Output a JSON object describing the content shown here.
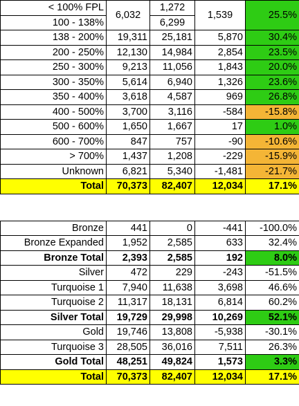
{
  "colors": {
    "total_row": "#ffff00",
    "positive": "#2ecc14",
    "negative": "#f4b536"
  },
  "fpl_table": {
    "first_group": {
      "label_a": "< 100% FPL",
      "label_b": "100 - 138%",
      "col1": "6,032",
      "col2a": "1,272",
      "col2b": "6,299",
      "col3": "1,539",
      "col4": "25.5%"
    },
    "rows": [
      {
        "label": "138 - 200%",
        "c1": "19,311",
        "c2": "25,181",
        "c3": "5,870",
        "c4": "30.4%",
        "tone": "green"
      },
      {
        "label": "200 - 250%",
        "c1": "12,130",
        "c2": "14,984",
        "c3": "2,854",
        "c4": "23.5%",
        "tone": "green"
      },
      {
        "label": "250 - 300%",
        "c1": "9,213",
        "c2": "11,056",
        "c3": "1,843",
        "c4": "20.0%",
        "tone": "green"
      },
      {
        "label": "300 - 350%",
        "c1": "5,614",
        "c2": "6,940",
        "c3": "1,326",
        "c4": "23.6%",
        "tone": "green"
      },
      {
        "label": "350 - 400%",
        "c1": "3,618",
        "c2": "4,587",
        "c3": "969",
        "c4": "26.8%",
        "tone": "green"
      },
      {
        "label": "400 - 500%",
        "c1": "3,700",
        "c2": "3,116",
        "c3": "-584",
        "c4": "-15.8%",
        "tone": "orange"
      },
      {
        "label": "500 - 600%",
        "c1": "1,650",
        "c2": "1,667",
        "c3": "17",
        "c4": "1.0%",
        "tone": "green"
      },
      {
        "label": "600 - 700%",
        "c1": "847",
        "c2": "757",
        "c3": "-90",
        "c4": "-10.6%",
        "tone": "orange"
      },
      {
        "label": "> 700%",
        "c1": "1,437",
        "c2": "1,208",
        "c3": "-229",
        "c4": "-15.9%",
        "tone": "orange"
      },
      {
        "label": "Unknown",
        "c1": "6,821",
        "c2": "5,340",
        "c3": "-1,481",
        "c4": "-21.7%",
        "tone": "orange"
      }
    ],
    "total": {
      "label": "Total",
      "c1": "70,373",
      "c2": "82,407",
      "c3": "12,034",
      "c4": "17.1%"
    }
  },
  "metal_table": {
    "rows": [
      {
        "label": "Bronze",
        "c1": "441",
        "c2": "0",
        "c3": "-441",
        "c4": "-100.0%",
        "tone": "none",
        "kind": "normal"
      },
      {
        "label": "Bronze Expanded",
        "c1": "1,952",
        "c2": "2,585",
        "c3": "633",
        "c4": "32.4%",
        "tone": "none",
        "kind": "normal"
      },
      {
        "label": "Bronze Total",
        "c1": "2,393",
        "c2": "2,585",
        "c3": "192",
        "c4": "8.0%",
        "tone": "green",
        "kind": "subtotal"
      },
      {
        "label": "Silver",
        "c1": "472",
        "c2": "229",
        "c3": "-243",
        "c4": "-51.5%",
        "tone": "none",
        "kind": "normal"
      },
      {
        "label": "Turquoise 1",
        "c1": "7,940",
        "c2": "11,638",
        "c3": "3,698",
        "c4": "46.6%",
        "tone": "none",
        "kind": "normal"
      },
      {
        "label": "Turquoise 2",
        "c1": "11,317",
        "c2": "18,131",
        "c3": "6,814",
        "c4": "60.2%",
        "tone": "none",
        "kind": "normal"
      },
      {
        "label": "Silver Total",
        "c1": "19,729",
        "c2": "29,998",
        "c3": "10,269",
        "c4": "52.1%",
        "tone": "green",
        "kind": "subtotal"
      },
      {
        "label": "Gold",
        "c1": "19,746",
        "c2": "13,808",
        "c3": "-5,938",
        "c4": "-30.1%",
        "tone": "none",
        "kind": "normal"
      },
      {
        "label": "Turquoise 3",
        "c1": "28,505",
        "c2": "36,016",
        "c3": "7,511",
        "c4": "26.3%",
        "tone": "none",
        "kind": "normal"
      },
      {
        "label": "Gold Total",
        "c1": "48,251",
        "c2": "49,824",
        "c3": "1,573",
        "c4": "3.3%",
        "tone": "green",
        "kind": "subtotal"
      }
    ],
    "total": {
      "label": "Total",
      "c1": "70,373",
      "c2": "82,407",
      "c3": "12,034",
      "c4": "17.1%"
    }
  }
}
